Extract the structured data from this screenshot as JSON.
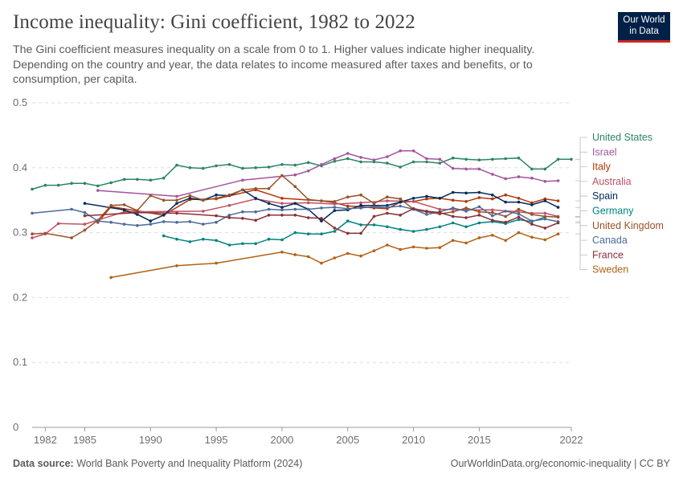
{
  "header": {
    "title": "Income inequality: Gini coefficient, 1982 to 2022",
    "subtitle": "The Gini coefficient measures inequality on a scale from 0 to 1. Higher values indicate higher inequality. Depending on the country and year, the data relates to income measured after taxes and benefits, or to consumption, per capita."
  },
  "logo": {
    "line1": "Our World",
    "line2": "in Data",
    "bg_color": "#002147",
    "accent_color": "#ce261e"
  },
  "footer": {
    "source_label": "Data source:",
    "source_text": "World Bank Poverty and Inequality Platform (2024)",
    "credit": "OurWorldinData.org/economic-inequality | CC BY"
  },
  "chart_data": {
    "type": "line",
    "title": "Income inequality: Gini coefficient, 1982 to 2022",
    "xlabel": "",
    "ylabel": "",
    "xlim": [
      1981,
      2022
    ],
    "ylim": [
      0,
      0.5
    ],
    "x_ticks": [
      1982,
      1985,
      1990,
      1995,
      2000,
      2005,
      2010,
      2015,
      2022
    ],
    "y_ticks": [
      0,
      0.1,
      0.2,
      0.3,
      0.4,
      0.5
    ],
    "y_tick_labels": [
      "0",
      "0.1",
      "0.2",
      "0.3",
      "0.4",
      "0.5"
    ],
    "grid": "horizontal-dashed",
    "legend": "right-end-labels",
    "series": [
      {
        "name": "United States",
        "color": "#2c8465",
        "x": [
          1981,
          1982,
          1983,
          1984,
          1985,
          1986,
          1987,
          1988,
          1989,
          1990,
          1991,
          1992,
          1993,
          1994,
          1995,
          1996,
          1997,
          1998,
          1999,
          2000,
          2001,
          2002,
          2003,
          2004,
          2005,
          2006,
          2007,
          2008,
          2009,
          2010,
          2011,
          2012,
          2013,
          2014,
          2015,
          2016,
          2017,
          2018,
          2019,
          2020,
          2021,
          2022
        ],
        "y": [
          0.367,
          0.373,
          0.373,
          0.376,
          0.376,
          0.372,
          0.377,
          0.382,
          0.382,
          0.381,
          0.384,
          0.404,
          0.4,
          0.399,
          0.403,
          0.405,
          0.399,
          0.4,
          0.401,
          0.405,
          0.404,
          0.408,
          0.403,
          0.41,
          0.414,
          0.409,
          0.409,
          0.407,
          0.401,
          0.409,
          0.409,
          0.407,
          0.415,
          0.413,
          0.412,
          0.413,
          0.414,
          0.415,
          0.398,
          0.398,
          0.413,
          0.413
        ]
      },
      {
        "name": "Israel",
        "color": "#a2559c",
        "x": [
          1986,
          1992,
          1997,
          2001,
          2002,
          2003,
          2004,
          2005,
          2006,
          2007,
          2008,
          2009,
          2010,
          2011,
          2012,
          2013,
          2014,
          2015,
          2016,
          2017,
          2018,
          2019,
          2020,
          2021
        ],
        "y": [
          0.365,
          0.356,
          0.381,
          0.389,
          0.395,
          0.405,
          0.414,
          0.422,
          0.416,
          0.412,
          0.417,
          0.426,
          0.426,
          0.414,
          0.413,
          0.399,
          0.398,
          0.398,
          0.39,
          0.383,
          0.386,
          0.384,
          0.379,
          0.38
        ]
      },
      {
        "name": "Italy",
        "color": "#b13507",
        "x": [
          1986,
          1987,
          1991,
          1993,
          1995,
          1998,
          2000,
          2003,
          2004,
          2005,
          2006,
          2007,
          2008,
          2009,
          2010,
          2011,
          2012,
          2013,
          2014,
          2015,
          2016,
          2017,
          2018,
          2019,
          2020,
          2021
        ],
        "y": [
          0.316,
          0.34,
          0.327,
          0.351,
          0.352,
          0.366,
          0.353,
          0.349,
          0.346,
          0.341,
          0.34,
          0.338,
          0.337,
          0.347,
          0.348,
          0.352,
          0.353,
          0.35,
          0.348,
          0.354,
          0.352,
          0.358,
          0.353,
          0.346,
          0.352,
          0.349
        ]
      },
      {
        "name": "Australia",
        "color": "#c15065",
        "x": [
          1981,
          1982,
          1983,
          1985,
          1988,
          1994,
          1996,
          1998,
          2000,
          2002,
          2004,
          2006,
          2008,
          2010,
          2012,
          2014,
          2016,
          2018,
          2019,
          2020,
          2021
        ],
        "y": [
          0.292,
          0.298,
          0.314,
          0.313,
          0.332,
          0.333,
          0.342,
          0.352,
          0.345,
          0.346,
          0.344,
          0.346,
          0.349,
          0.348,
          0.336,
          0.335,
          0.335,
          0.332,
          0.33,
          0.33,
          0.325
        ]
      },
      {
        "name": "Spain",
        "color": "#00295b",
        "x": [
          1985,
          1988,
          1989,
          1990,
          1991,
          1992,
          1993,
          1994,
          1995,
          1996,
          1997,
          1998,
          1999,
          2000,
          2001,
          2002,
          2003,
          2004,
          2005,
          2006,
          2007,
          2008,
          2009,
          2010,
          2011,
          2012,
          2013,
          2014,
          2015,
          2016,
          2017,
          2018,
          2019,
          2020,
          2021
        ],
        "y": [
          0.345,
          0.335,
          0.328,
          0.318,
          0.327,
          0.345,
          0.353,
          0.35,
          0.358,
          0.357,
          0.366,
          0.353,
          0.345,
          0.339,
          0.345,
          0.336,
          0.318,
          0.334,
          0.335,
          0.342,
          0.342,
          0.342,
          0.347,
          0.353,
          0.356,
          0.353,
          0.362,
          0.361,
          0.362,
          0.358,
          0.347,
          0.347,
          0.343,
          0.349,
          0.339
        ]
      },
      {
        "name": "Germany",
        "color": "#00847e",
        "x": [
          1991,
          1992,
          1993,
          1994,
          1995,
          1996,
          1997,
          1998,
          1999,
          2000,
          2001,
          2002,
          2003,
          2004,
          2005,
          2006,
          2007,
          2008,
          2009,
          2010,
          2011,
          2012,
          2013,
          2014,
          2015,
          2016,
          2017,
          2018,
          2019,
          2020
        ],
        "y": [
          0.295,
          0.29,
          0.286,
          0.29,
          0.288,
          0.281,
          0.283,
          0.283,
          0.29,
          0.289,
          0.3,
          0.298,
          0.298,
          0.302,
          0.318,
          0.312,
          0.312,
          0.309,
          0.305,
          0.302,
          0.305,
          0.309,
          0.315,
          0.309,
          0.315,
          0.317,
          0.314,
          0.32,
          0.317,
          0.324
        ]
      },
      {
        "name": "United Kingdom",
        "color": "#9a5129",
        "x": [
          1981,
          1982,
          1984,
          1985,
          1986,
          1987,
          1988,
          1989,
          1990,
          1991,
          1992,
          1993,
          1994,
          1995,
          1996,
          1997,
          1998,
          1999,
          2000,
          2001,
          2002,
          2003,
          2004,
          2005,
          2006,
          2007,
          2008,
          2009,
          2010,
          2011,
          2012,
          2013,
          2014,
          2015,
          2016,
          2017,
          2018,
          2019,
          2020,
          2021
        ],
        "y": [
          0.298,
          0.299,
          0.292,
          0.304,
          0.319,
          0.342,
          0.343,
          0.334,
          0.357,
          0.35,
          0.35,
          0.357,
          0.35,
          0.353,
          0.358,
          0.366,
          0.368,
          0.368,
          0.388,
          0.371,
          0.351,
          0.349,
          0.348,
          0.355,
          0.358,
          0.345,
          0.355,
          0.352,
          0.336,
          0.332,
          0.329,
          0.332,
          0.338,
          0.332,
          0.331,
          0.325,
          0.336,
          0.328,
          0.325,
          0.324
        ]
      },
      {
        "name": "Canada",
        "color": "#4c6a9c",
        "x": [
          1981,
          1984,
          1985,
          1986,
          1987,
          1988,
          1989,
          1990,
          1991,
          1992,
          1993,
          1994,
          1995,
          1996,
          1997,
          1998,
          1999,
          2000,
          2001,
          2002,
          2003,
          2004,
          2005,
          2006,
          2007,
          2008,
          2009,
          2010,
          2011,
          2012,
          2013,
          2014,
          2015,
          2016,
          2017,
          2018,
          2019,
          2020,
          2021
        ],
        "y": [
          0.33,
          0.336,
          0.331,
          0.318,
          0.316,
          0.313,
          0.311,
          0.313,
          0.317,
          0.316,
          0.317,
          0.313,
          0.316,
          0.327,
          0.332,
          0.332,
          0.336,
          0.335,
          0.336,
          0.336,
          0.338,
          0.339,
          0.337,
          0.338,
          0.34,
          0.339,
          0.341,
          0.336,
          0.328,
          0.332,
          0.338,
          0.333,
          0.34,
          0.326,
          0.333,
          0.329,
          0.318,
          0.321,
          0.317
        ]
      },
      {
        "name": "France",
        "color": "#883039",
        "x": [
          1985,
          1989,
          1992,
          1995,
          1996,
          1997,
          1998,
          1999,
          2000,
          2001,
          2002,
          2003,
          2004,
          2005,
          2006,
          2007,
          2008,
          2009,
          2010,
          2011,
          2012,
          2013,
          2014,
          2015,
          2016,
          2017,
          2018,
          2019,
          2020,
          2021
        ],
        "y": [
          0.326,
          0.331,
          0.33,
          0.326,
          0.323,
          0.322,
          0.319,
          0.327,
          0.327,
          0.327,
          0.323,
          0.322,
          0.307,
          0.299,
          0.299,
          0.325,
          0.33,
          0.327,
          0.337,
          0.333,
          0.331,
          0.325,
          0.323,
          0.327,
          0.319,
          0.316,
          0.324,
          0.313,
          0.307,
          0.315
        ]
      },
      {
        "name": "Sweden",
        "color": "#b16214",
        "x": [
          1987,
          1992,
          1995,
          2000,
          2001,
          2002,
          2003,
          2004,
          2005,
          2006,
          2007,
          2008,
          2009,
          2010,
          2011,
          2012,
          2013,
          2014,
          2015,
          2016,
          2017,
          2018,
          2019,
          2020,
          2021
        ],
        "y": [
          0.231,
          0.249,
          0.253,
          0.27,
          0.266,
          0.263,
          0.253,
          0.261,
          0.268,
          0.264,
          0.272,
          0.281,
          0.274,
          0.278,
          0.276,
          0.277,
          0.288,
          0.284,
          0.292,
          0.296,
          0.288,
          0.3,
          0.293,
          0.289,
          0.298
        ]
      }
    ]
  }
}
